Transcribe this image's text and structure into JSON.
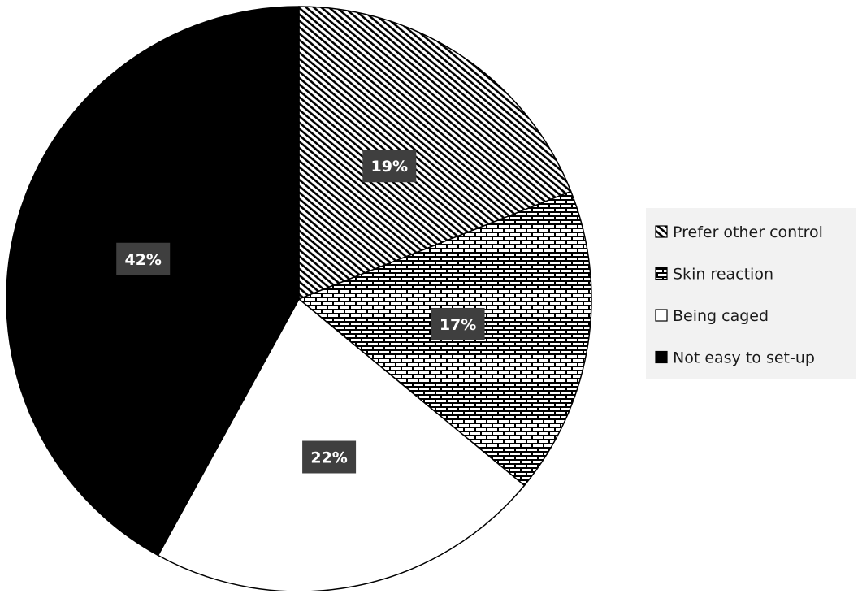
{
  "chart_data": {
    "type": "pie",
    "title": "",
    "slices": [
      {
        "label": "Prefer other control",
        "value": 19,
        "pattern": "diagonal-stripes",
        "data_label": "19%"
      },
      {
        "label": "Skin reaction",
        "value": 17,
        "pattern": "brick",
        "data_label": "17%"
      },
      {
        "label": "Being caged",
        "value": 22,
        "pattern": "solid-white",
        "data_label": "22%"
      },
      {
        "label": "Not easy to set-up",
        "value": 42,
        "pattern": "solid-black",
        "data_label": "42%"
      }
    ],
    "start_angle": "12 o'clock",
    "direction": "clockwise",
    "legend_position": "right",
    "colors": {
      "outline": "#000000",
      "label_box": "#3f3f3f",
      "label_text": "#ffffff",
      "legend_bg": "#f2f2f2",
      "legend_text": "#1a1a1a"
    }
  }
}
